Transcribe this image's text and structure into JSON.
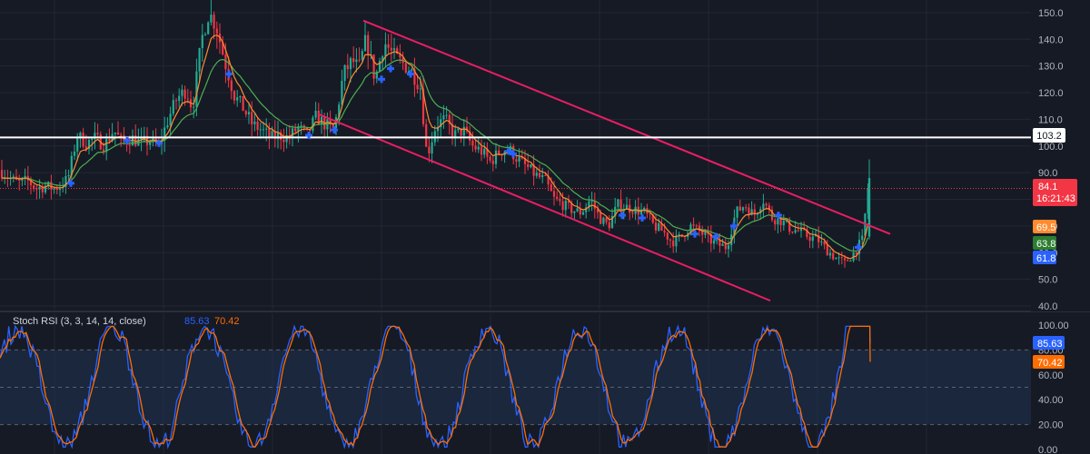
{
  "colors": {
    "background": "#161a25",
    "grid": "#232734",
    "up": "#22ab94",
    "down": "#f23645",
    "ema_fast": "#ff8b2f",
    "ema_slow": "#4caf50",
    "channel": "#e91e63",
    "resistance": "#ffffff",
    "signal": "#2962ff",
    "stoch_k": "#2962ff",
    "stoch_d": "#ff6d00",
    "band": "#1f3350"
  },
  "icons": {
    "signal_marker": "plus-icon"
  },
  "price_axis": {
    "ticks": [
      "150.0",
      "140.0",
      "130.0",
      "120.0",
      "110.0",
      "100.0",
      "90.0",
      "80.0",
      "70.0",
      "60.0",
      "50.0",
      "40.0"
    ],
    "range": [
      40,
      152
    ]
  },
  "tags": {
    "resistance": {
      "value": "103.2"
    },
    "last_price": {
      "value": "84.1",
      "countdown": "16:21:43"
    },
    "ema_fast": {
      "value": "69.5"
    },
    "ema_slow": {
      "value": "63.8"
    },
    "signal": {
      "value": "61.8"
    }
  },
  "indicator": {
    "title": "Stoch RSI (3, 3, 14, 14, close)",
    "k_value": "85.63",
    "d_value": "70.42",
    "axis_ticks": [
      "100.00",
      "80.00",
      "60.00",
      "40.00",
      "20.00",
      "0.00"
    ],
    "range": [
      0,
      100
    ],
    "bands": [
      80,
      20,
      50
    ]
  },
  "chart_data": [
    {
      "type": "candlestick",
      "series": [
        {
          "name": "Price",
          "values": [
            [
              0,
              91
            ],
            [
              10,
              88
            ],
            [
              20,
              86
            ],
            [
              30,
              87
            ],
            [
              40,
              84
            ],
            [
              50,
              85
            ],
            [
              60,
              84
            ],
            [
              70,
              86
            ],
            [
              75,
              88
            ],
            [
              85,
              104
            ],
            [
              95,
              101
            ],
            [
              105,
              103
            ],
            [
              115,
              100
            ],
            [
              125,
              106
            ],
            [
              135,
              101
            ],
            [
              145,
              103
            ],
            [
              155,
              101
            ],
            [
              165,
              102
            ],
            [
              175,
              100
            ],
            [
              185,
              110
            ],
            [
              195,
              118
            ],
            [
              205,
              121
            ],
            [
              212,
              114
            ],
            [
              222,
              140
            ],
            [
              230,
              150
            ],
            [
              238,
              145
            ],
            [
              248,
              131
            ],
            [
              258,
              119
            ],
            [
              268,
              114
            ],
            [
              278,
              108
            ],
            [
              288,
              106
            ],
            [
              298,
              103
            ],
            [
              308,
              104
            ],
            [
              318,
              103
            ],
            [
              328,
              107
            ],
            [
              338,
              104
            ],
            [
              348,
              111
            ],
            [
              358,
              108
            ],
            [
              368,
              106
            ],
            [
              378,
              127
            ],
            [
              388,
              132
            ],
            [
              395,
              129
            ],
            [
              403,
              140
            ],
            [
              413,
              125
            ],
            [
              423,
              139
            ],
            [
              433,
              134
            ],
            [
              443,
              131
            ],
            [
              453,
              128
            ],
            [
              463,
              122
            ],
            [
              470,
              96
            ],
            [
              480,
              108
            ],
            [
              490,
              110
            ],
            [
              500,
              104
            ],
            [
              510,
              106
            ],
            [
              520,
              100
            ],
            [
              530,
              98
            ],
            [
              540,
              94
            ],
            [
              550,
              98
            ],
            [
              560,
              99
            ],
            [
              570,
              95
            ],
            [
              580,
              92
            ],
            [
              590,
              89
            ],
            [
              600,
              87
            ],
            [
              610,
              80
            ],
            [
              620,
              78
            ],
            [
              630,
              76
            ],
            [
              640,
              75
            ],
            [
              650,
              80
            ],
            [
              660,
              73
            ],
            [
              670,
              70
            ],
            [
              680,
              78
            ],
            [
              690,
              77
            ],
            [
              700,
              76
            ],
            [
              710,
              75
            ],
            [
              720,
              70
            ],
            [
              730,
              68
            ],
            [
              740,
              64
            ],
            [
              750,
              66
            ],
            [
              760,
              70
            ],
            [
              770,
              68
            ],
            [
              780,
              65
            ],
            [
              790,
              63
            ],
            [
              800,
              62
            ],
            [
              810,
              75
            ],
            [
              820,
              78
            ],
            [
              830,
              74
            ],
            [
              840,
              80
            ],
            [
              850,
              73
            ],
            [
              860,
              72
            ],
            [
              870,
              69
            ],
            [
              880,
              68
            ],
            [
              890,
              66
            ],
            [
              900,
              65
            ],
            [
              910,
              61
            ],
            [
              920,
              58
            ],
            [
              930,
              56
            ],
            [
              940,
              60
            ],
            [
              950,
              65
            ],
            [
              955,
              84
            ]
          ]
        }
      ],
      "lines": [
        {
          "name": "EMA fast",
          "value": 69.5
        },
        {
          "name": "EMA slow",
          "value": 63.8
        }
      ],
      "horizontal_line": 103.2,
      "channel": {
        "upper": [
          [
            400,
            147
          ],
          [
            980,
            67
          ]
        ],
        "lower": [
          [
            350,
            112
          ],
          [
            848,
            42
          ]
        ]
      },
      "signals": [
        [
          78,
          86
        ],
        [
          140,
          102
        ],
        [
          175,
          101
        ],
        [
          252,
          127
        ],
        [
          340,
          104
        ],
        [
          368,
          106
        ],
        [
          420,
          125
        ],
        [
          430,
          129
        ],
        [
          452,
          127
        ],
        [
          560,
          98
        ],
        [
          565,
          97
        ],
        [
          685,
          74
        ],
        [
          707,
          73
        ],
        [
          765,
          67
        ],
        [
          788,
          66
        ],
        [
          808,
          70
        ],
        [
          857,
          74
        ],
        [
          945,
          62
        ]
      ],
      "yrange": [
        40,
        152
      ]
    },
    {
      "type": "line",
      "title": "Stoch RSI (3, 3, 14, 14, close)",
      "series": [
        {
          "name": "K",
          "last": 85.63
        },
        {
          "name": "D",
          "last": 70.42
        }
      ],
      "ylim": [
        0,
        100
      ]
    }
  ]
}
